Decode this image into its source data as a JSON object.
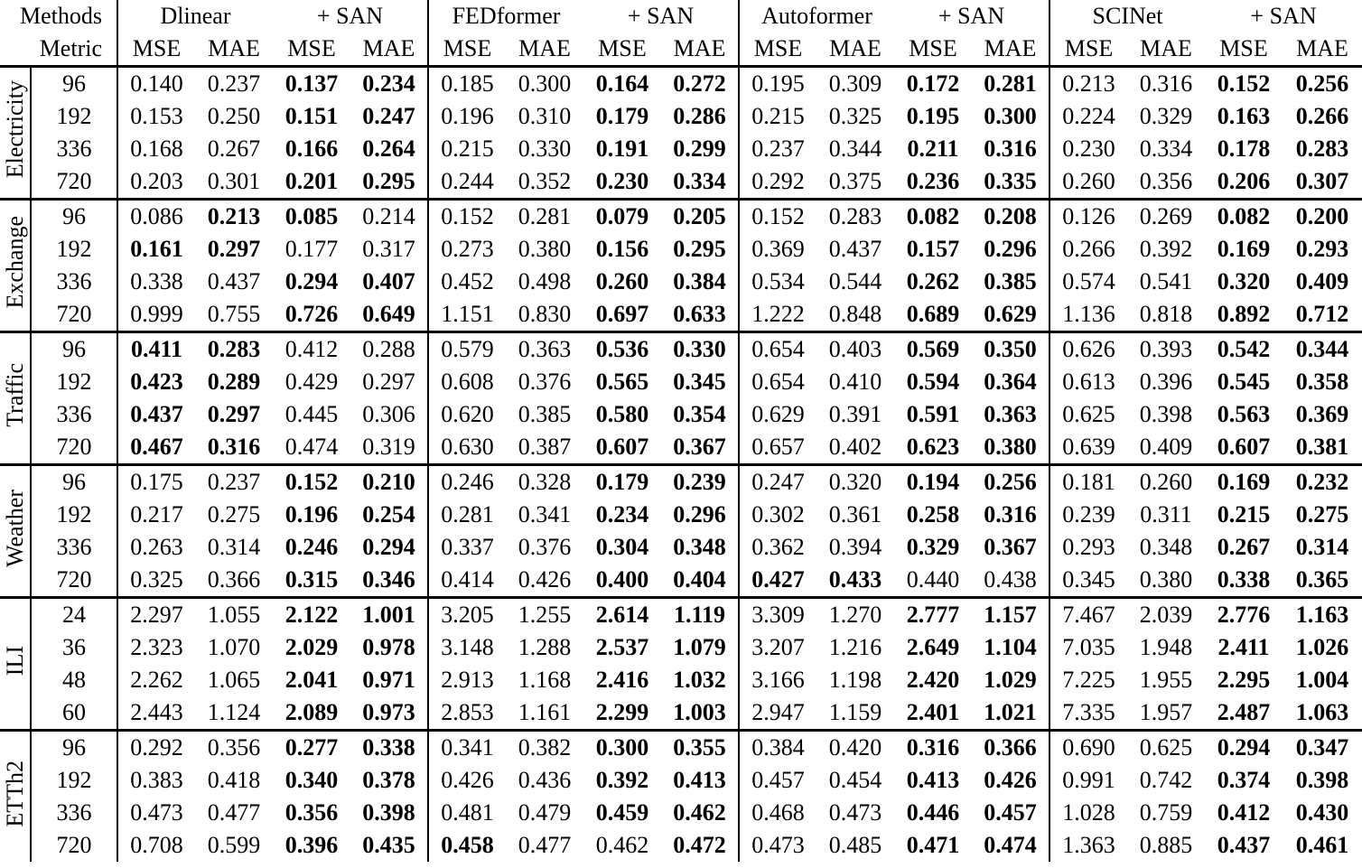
{
  "header": {
    "methods_label": "Methods",
    "metric_label": "Metric",
    "groups": [
      "Dlinear",
      "+ SAN",
      "FEDformer",
      "+ SAN",
      "Autoformer",
      "+ SAN",
      "SCINet",
      "+ SAN"
    ],
    "metric_cells": [
      "MSE",
      "MAE",
      "MSE",
      "MAE",
      "MSE",
      "MAE",
      "MSE",
      "MAE",
      "MSE",
      "MAE",
      "MSE",
      "MAE",
      "MSE",
      "MAE",
      "MSE",
      "MAE"
    ]
  },
  "blocks": [
    {
      "dataset": "Electricity",
      "rows": [
        {
          "h": "96",
          "v": [
            "0.140",
            "0.237",
            "0.137",
            "0.234",
            "0.185",
            "0.300",
            "0.164",
            "0.272",
            "0.195",
            "0.309",
            "0.172",
            "0.281",
            "0.213",
            "0.316",
            "0.152",
            "0.256"
          ],
          "b": [
            0,
            0,
            1,
            1,
            0,
            0,
            1,
            1,
            0,
            0,
            1,
            1,
            0,
            0,
            1,
            1
          ]
        },
        {
          "h": "192",
          "v": [
            "0.153",
            "0.250",
            "0.151",
            "0.247",
            "0.196",
            "0.310",
            "0.179",
            "0.286",
            "0.215",
            "0.325",
            "0.195",
            "0.300",
            "0.224",
            "0.329",
            "0.163",
            "0.266"
          ],
          "b": [
            0,
            0,
            1,
            1,
            0,
            0,
            1,
            1,
            0,
            0,
            1,
            1,
            0,
            0,
            1,
            1
          ]
        },
        {
          "h": "336",
          "v": [
            "0.168",
            "0.267",
            "0.166",
            "0.264",
            "0.215",
            "0.330",
            "0.191",
            "0.299",
            "0.237",
            "0.344",
            "0.211",
            "0.316",
            "0.230",
            "0.334",
            "0.178",
            "0.283"
          ],
          "b": [
            0,
            0,
            1,
            1,
            0,
            0,
            1,
            1,
            0,
            0,
            1,
            1,
            0,
            0,
            1,
            1
          ]
        },
        {
          "h": "720",
          "v": [
            "0.203",
            "0.301",
            "0.201",
            "0.295",
            "0.244",
            "0.352",
            "0.230",
            "0.334",
            "0.292",
            "0.375",
            "0.236",
            "0.335",
            "0.260",
            "0.356",
            "0.206",
            "0.307"
          ],
          "b": [
            0,
            0,
            1,
            1,
            0,
            0,
            1,
            1,
            0,
            0,
            1,
            1,
            0,
            0,
            1,
            1
          ]
        }
      ]
    },
    {
      "dataset": "Exchange",
      "rows": [
        {
          "h": "96",
          "v": [
            "0.086",
            "0.213",
            "0.085",
            "0.214",
            "0.152",
            "0.281",
            "0.079",
            "0.205",
            "0.152",
            "0.283",
            "0.082",
            "0.208",
            "0.126",
            "0.269",
            "0.082",
            "0.200"
          ],
          "b": [
            0,
            1,
            1,
            0,
            0,
            0,
            1,
            1,
            0,
            0,
            1,
            1,
            0,
            0,
            1,
            1
          ]
        },
        {
          "h": "192",
          "v": [
            "0.161",
            "0.297",
            "0.177",
            "0.317",
            "0.273",
            "0.380",
            "0.156",
            "0.295",
            "0.369",
            "0.437",
            "0.157",
            "0.296",
            "0.266",
            "0.392",
            "0.169",
            "0.293"
          ],
          "b": [
            1,
            1,
            0,
            0,
            0,
            0,
            1,
            1,
            0,
            0,
            1,
            1,
            0,
            0,
            1,
            1
          ]
        },
        {
          "h": "336",
          "v": [
            "0.338",
            "0.437",
            "0.294",
            "0.407",
            "0.452",
            "0.498",
            "0.260",
            "0.384",
            "0.534",
            "0.544",
            "0.262",
            "0.385",
            "0.574",
            "0.541",
            "0.320",
            "0.409"
          ],
          "b": [
            0,
            0,
            1,
            1,
            0,
            0,
            1,
            1,
            0,
            0,
            1,
            1,
            0,
            0,
            1,
            1
          ]
        },
        {
          "h": "720",
          "v": [
            "0.999",
            "0.755",
            "0.726",
            "0.649",
            "1.151",
            "0.830",
            "0.697",
            "0.633",
            "1.222",
            "0.848",
            "0.689",
            "0.629",
            "1.136",
            "0.818",
            "0.892",
            "0.712"
          ],
          "b": [
            0,
            0,
            1,
            1,
            0,
            0,
            1,
            1,
            0,
            0,
            1,
            1,
            0,
            0,
            1,
            1
          ]
        }
      ]
    },
    {
      "dataset": "Traffic",
      "rows": [
        {
          "h": "96",
          "v": [
            "0.411",
            "0.283",
            "0.412",
            "0.288",
            "0.579",
            "0.363",
            "0.536",
            "0.330",
            "0.654",
            "0.403",
            "0.569",
            "0.350",
            "0.626",
            "0.393",
            "0.542",
            "0.344"
          ],
          "b": [
            1,
            1,
            0,
            0,
            0,
            0,
            1,
            1,
            0,
            0,
            1,
            1,
            0,
            0,
            1,
            1
          ]
        },
        {
          "h": "192",
          "v": [
            "0.423",
            "0.289",
            "0.429",
            "0.297",
            "0.608",
            "0.376",
            "0.565",
            "0.345",
            "0.654",
            "0.410",
            "0.594",
            "0.364",
            "0.613",
            "0.396",
            "0.545",
            "0.358"
          ],
          "b": [
            1,
            1,
            0,
            0,
            0,
            0,
            1,
            1,
            0,
            0,
            1,
            1,
            0,
            0,
            1,
            1
          ]
        },
        {
          "h": "336",
          "v": [
            "0.437",
            "0.297",
            "0.445",
            "0.306",
            "0.620",
            "0.385",
            "0.580",
            "0.354",
            "0.629",
            "0.391",
            "0.591",
            "0.363",
            "0.625",
            "0.398",
            "0.563",
            "0.369"
          ],
          "b": [
            1,
            1,
            0,
            0,
            0,
            0,
            1,
            1,
            0,
            0,
            1,
            1,
            0,
            0,
            1,
            1
          ]
        },
        {
          "h": "720",
          "v": [
            "0.467",
            "0.316",
            "0.474",
            "0.319",
            "0.630",
            "0.387",
            "0.607",
            "0.367",
            "0.657",
            "0.402",
            "0.623",
            "0.380",
            "0.639",
            "0.409",
            "0.607",
            "0.381"
          ],
          "b": [
            1,
            1,
            0,
            0,
            0,
            0,
            1,
            1,
            0,
            0,
            1,
            1,
            0,
            0,
            1,
            1
          ]
        }
      ]
    },
    {
      "dataset": "Weather",
      "rows": [
        {
          "h": "96",
          "v": [
            "0.175",
            "0.237",
            "0.152",
            "0.210",
            "0.246",
            "0.328",
            "0.179",
            "0.239",
            "0.247",
            "0.320",
            "0.194",
            "0.256",
            "0.181",
            "0.260",
            "0.169",
            "0.232"
          ],
          "b": [
            0,
            0,
            1,
            1,
            0,
            0,
            1,
            1,
            0,
            0,
            1,
            1,
            0,
            0,
            1,
            1
          ]
        },
        {
          "h": "192",
          "v": [
            "0.217",
            "0.275",
            "0.196",
            "0.254",
            "0.281",
            "0.341",
            "0.234",
            "0.296",
            "0.302",
            "0.361",
            "0.258",
            "0.316",
            "0.239",
            "0.311",
            "0.215",
            "0.275"
          ],
          "b": [
            0,
            0,
            1,
            1,
            0,
            0,
            1,
            1,
            0,
            0,
            1,
            1,
            0,
            0,
            1,
            1
          ]
        },
        {
          "h": "336",
          "v": [
            "0.263",
            "0.314",
            "0.246",
            "0.294",
            "0.337",
            "0.376",
            "0.304",
            "0.348",
            "0.362",
            "0.394",
            "0.329",
            "0.367",
            "0.293",
            "0.348",
            "0.267",
            "0.314"
          ],
          "b": [
            0,
            0,
            1,
            1,
            0,
            0,
            1,
            1,
            0,
            0,
            1,
            1,
            0,
            0,
            1,
            1
          ]
        },
        {
          "h": "720",
          "v": [
            "0.325",
            "0.366",
            "0.315",
            "0.346",
            "0.414",
            "0.426",
            "0.400",
            "0.404",
            "0.427",
            "0.433",
            "0.440",
            "0.438",
            "0.345",
            "0.380",
            "0.338",
            "0.365"
          ],
          "b": [
            0,
            0,
            1,
            1,
            0,
            0,
            1,
            1,
            1,
            1,
            0,
            0,
            0,
            0,
            1,
            1
          ]
        }
      ]
    },
    {
      "dataset": "ILI",
      "rows": [
        {
          "h": "24",
          "v": [
            "2.297",
            "1.055",
            "2.122",
            "1.001",
            "3.205",
            "1.255",
            "2.614",
            "1.119",
            "3.309",
            "1.270",
            "2.777",
            "1.157",
            "7.467",
            "2.039",
            "2.776",
            "1.163"
          ],
          "b": [
            0,
            0,
            1,
            1,
            0,
            0,
            1,
            1,
            0,
            0,
            1,
            1,
            0,
            0,
            1,
            1
          ]
        },
        {
          "h": "36",
          "v": [
            "2.323",
            "1.070",
            "2.029",
            "0.978",
            "3.148",
            "1.288",
            "2.537",
            "1.079",
            "3.207",
            "1.216",
            "2.649",
            "1.104",
            "7.035",
            "1.948",
            "2.411",
            "1.026"
          ],
          "b": [
            0,
            0,
            1,
            1,
            0,
            0,
            1,
            1,
            0,
            0,
            1,
            1,
            0,
            0,
            1,
            1
          ]
        },
        {
          "h": "48",
          "v": [
            "2.262",
            "1.065",
            "2.041",
            "0.971",
            "2.913",
            "1.168",
            "2.416",
            "1.032",
            "3.166",
            "1.198",
            "2.420",
            "1.029",
            "7.225",
            "1.955",
            "2.295",
            "1.004"
          ],
          "b": [
            0,
            0,
            1,
            1,
            0,
            0,
            1,
            1,
            0,
            0,
            1,
            1,
            0,
            0,
            1,
            1
          ]
        },
        {
          "h": "60",
          "v": [
            "2.443",
            "1.124",
            "2.089",
            "0.973",
            "2.853",
            "1.161",
            "2.299",
            "1.003",
            "2.947",
            "1.159",
            "2.401",
            "1.021",
            "7.335",
            "1.957",
            "2.487",
            "1.063"
          ],
          "b": [
            0,
            0,
            1,
            1,
            0,
            0,
            1,
            1,
            0,
            0,
            1,
            1,
            0,
            0,
            1,
            1
          ]
        }
      ]
    },
    {
      "dataset": "ETTh2",
      "rows": [
        {
          "h": "96",
          "v": [
            "0.292",
            "0.356",
            "0.277",
            "0.338",
            "0.341",
            "0.382",
            "0.300",
            "0.355",
            "0.384",
            "0.420",
            "0.316",
            "0.366",
            "0.690",
            "0.625",
            "0.294",
            "0.347"
          ],
          "b": [
            0,
            0,
            1,
            1,
            0,
            0,
            1,
            1,
            0,
            0,
            1,
            1,
            0,
            0,
            1,
            1
          ]
        },
        {
          "h": "192",
          "v": [
            "0.383",
            "0.418",
            "0.340",
            "0.378",
            "0.426",
            "0.436",
            "0.392",
            "0.413",
            "0.457",
            "0.454",
            "0.413",
            "0.426",
            "0.991",
            "0.742",
            "0.374",
            "0.398"
          ],
          "b": [
            0,
            0,
            1,
            1,
            0,
            0,
            1,
            1,
            0,
            0,
            1,
            1,
            0,
            0,
            1,
            1
          ]
        },
        {
          "h": "336",
          "v": [
            "0.473",
            "0.477",
            "0.356",
            "0.398",
            "0.481",
            "0.479",
            "0.459",
            "0.462",
            "0.468",
            "0.473",
            "0.446",
            "0.457",
            "1.028",
            "0.759",
            "0.412",
            "0.430"
          ],
          "b": [
            0,
            0,
            1,
            1,
            0,
            0,
            1,
            1,
            0,
            0,
            1,
            1,
            0,
            0,
            1,
            1
          ]
        },
        {
          "h": "720",
          "v": [
            "0.708",
            "0.599",
            "0.396",
            "0.435",
            "0.458",
            "0.477",
            "0.462",
            "0.472",
            "0.473",
            "0.485",
            "0.471",
            "0.474",
            "1.363",
            "0.885",
            "0.437",
            "0.461"
          ],
          "b": [
            0,
            0,
            1,
            1,
            1,
            0,
            0,
            1,
            0,
            0,
            1,
            1,
            0,
            0,
            1,
            1
          ]
        }
      ]
    }
  ]
}
